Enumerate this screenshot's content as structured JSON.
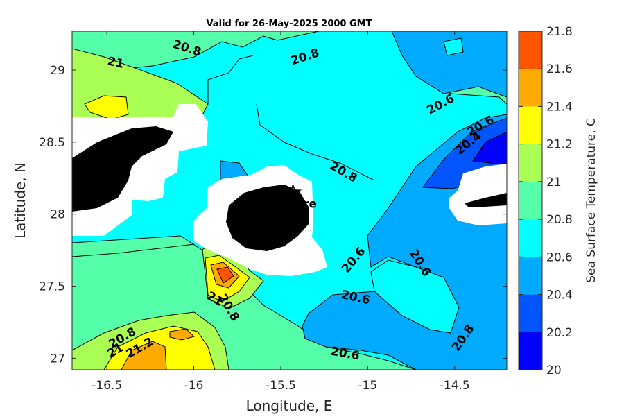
{
  "chart_data": {
    "type": "contour",
    "title": "Valid for 26-May-2025 2000 GMT",
    "xlabel": "Longitude, E",
    "ylabel": "Latitude, N",
    "xlim": [
      -16.7,
      -14.2
    ],
    "ylim": [
      26.92,
      29.27
    ],
    "x_ticks": [
      -16.5,
      -16,
      -15.5,
      -15,
      -14.5
    ],
    "x_tick_labels": [
      "-16.5",
      "-16",
      "-15.5",
      "-15",
      "-14.5"
    ],
    "y_ticks": [
      27,
      27.5,
      28,
      28.5,
      29
    ],
    "y_tick_labels": [
      "27",
      "27.5",
      "28",
      "28.5",
      "29"
    ],
    "colorbar": {
      "label": "Sea Surface Temperature, C",
      "levels": [
        20,
        20.2,
        20.4,
        20.6,
        20.8,
        21,
        21.2,
        21.4,
        21.6,
        21.8
      ],
      "tick_labels": [
        "20",
        "20.2",
        "20.4",
        "20.6",
        "20.8",
        "21",
        "21.2",
        "21.4",
        "21.6",
        "21.8"
      ],
      "colors": [
        "#0000ff",
        "#0055ff",
        "#00aaff",
        "#00ffff",
        "#55ffaa",
        "#aaff55",
        "#ffff00",
        "#ffaa00",
        "#ff5500"
      ]
    },
    "contour_labels": [
      {
        "text": "20.8",
        "lon": -16.04,
        "lat": 29.15
      },
      {
        "text": "21",
        "lon": -16.45,
        "lat": 29.05
      },
      {
        "text": "20.8",
        "lon": -15.36,
        "lat": 29.09
      },
      {
        "text": "20.6",
        "lon": -14.58,
        "lat": 28.76
      },
      {
        "text": "20.6",
        "lon": -14.35,
        "lat": 28.61
      },
      {
        "text": "20.4",
        "lon": -14.42,
        "lat": 28.49
      },
      {
        "text": "20.8",
        "lon": -15.14,
        "lat": 28.29
      },
      {
        "text": "20.6",
        "lon": -15.08,
        "lat": 27.68
      },
      {
        "text": "20.6",
        "lon": -14.7,
        "lat": 27.66
      },
      {
        "text": "20.6",
        "lon": -15.07,
        "lat": 27.42
      },
      {
        "text": "21",
        "lon": -15.88,
        "lat": 27.41
      },
      {
        "text": "20.8",
        "lon": -15.8,
        "lat": 27.35
      },
      {
        "text": "20.8",
        "lon": -16.41,
        "lat": 27.14
      },
      {
        "text": "21",
        "lon": -16.45,
        "lat": 27.05
      },
      {
        "text": "21.2",
        "lon": -16.31,
        "lat": 27.07
      },
      {
        "text": "20.6",
        "lon": -15.13,
        "lat": 27.03
      },
      {
        "text": "20.8",
        "lon": -14.45,
        "lat": 27.14
      }
    ],
    "marker": {
      "label": "Tyre",
      "lon": -15.43,
      "lat": 28.15
    },
    "land": "black",
    "mask": "white"
  }
}
